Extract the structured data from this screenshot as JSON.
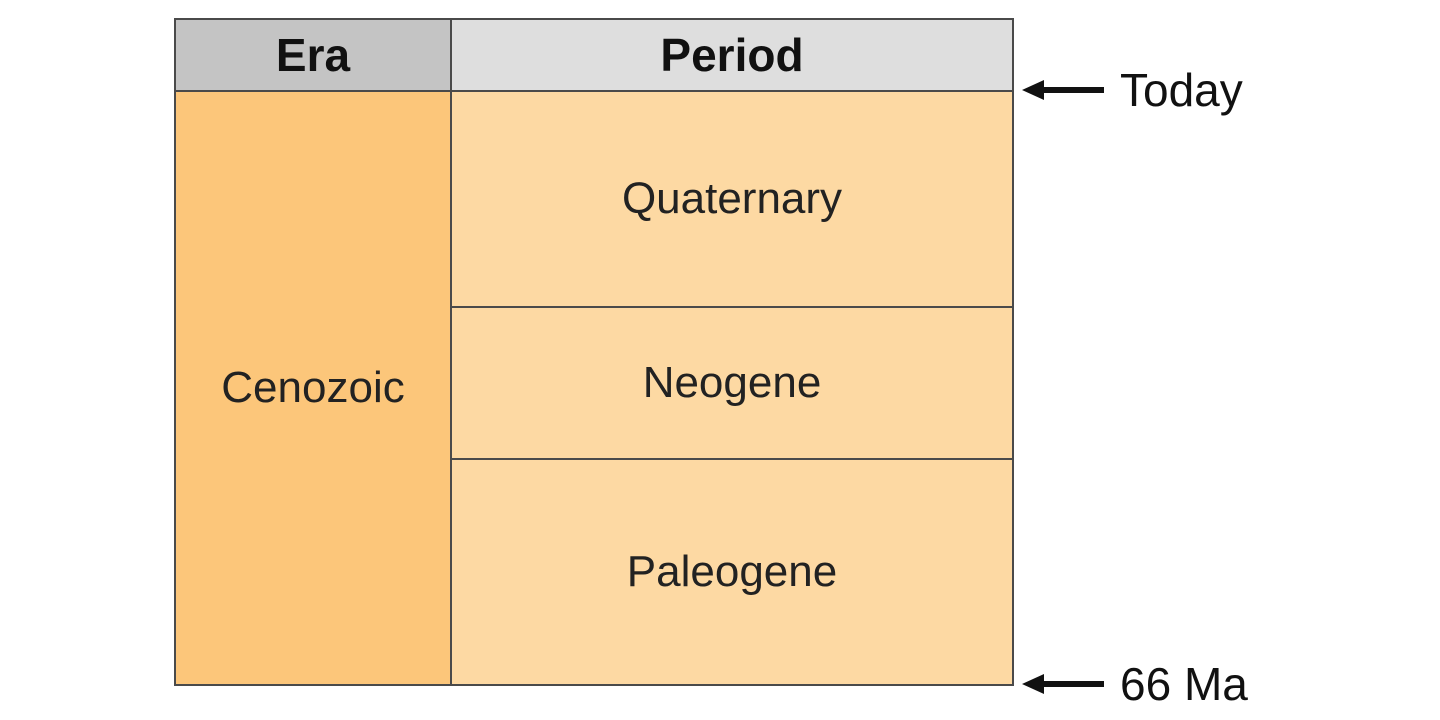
{
  "header": {
    "era_label": "Era",
    "period_label": "Period"
  },
  "era": {
    "name": "Cenozoic"
  },
  "periods": [
    {
      "name": "Quaternary"
    },
    {
      "name": "Neogene"
    },
    {
      "name": "Paleogene"
    }
  ],
  "markers": {
    "top": {
      "label": "Today",
      "icon": "left-arrow-icon"
    },
    "bottom": {
      "label": "66 Ma",
      "icon": "left-arrow-icon"
    }
  },
  "colors": {
    "era_fill": "#fcc67a",
    "period_fill": "#fdd9a3",
    "header_era": "#c4c4c4",
    "header_period": "#dedede",
    "border": "#4a4a4a"
  }
}
